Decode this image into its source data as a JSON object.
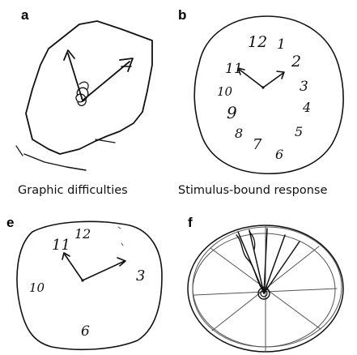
{
  "figure": {
    "panels": [
      {
        "id": "a",
        "letter": "a",
        "caption": "Graphic difficulties",
        "drawing": "clock-drawing"
      },
      {
        "id": "b",
        "letter": "b",
        "caption": "Stimulus-bound response",
        "drawing": "clock-drawing",
        "clock_numbers": [
          "12",
          "1",
          "2",
          "11",
          "3",
          "10",
          "4",
          "9",
          "5",
          "8",
          "7",
          "6"
        ]
      },
      {
        "id": "e",
        "letter": "e",
        "caption": "",
        "drawing": "clock-drawing",
        "clock_numbers": [
          "11",
          "12",
          "3",
          "10",
          "6"
        ]
      },
      {
        "id": "f",
        "letter": "f",
        "caption": "",
        "drawing": "clock-drawing"
      }
    ]
  }
}
